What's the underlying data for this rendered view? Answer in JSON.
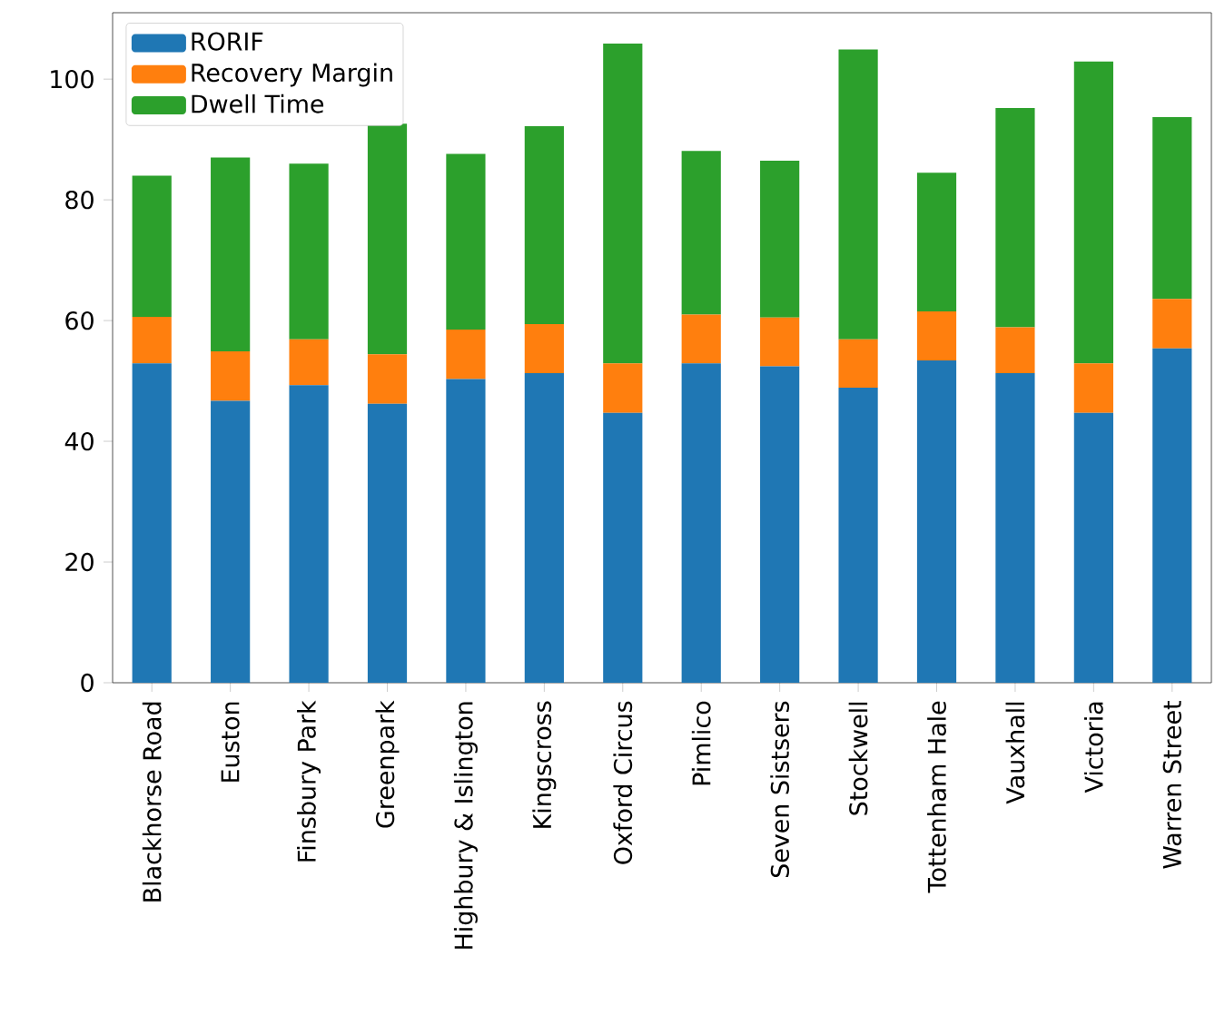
{
  "chart_data": {
    "type": "bar",
    "stacked": true,
    "legend": "top left",
    "categories": [
      "Blackhorse Road",
      "Euston",
      "Finsbury Park",
      "Greenpark",
      "Highbury & Islington",
      "Kingscross",
      "Oxford Circus",
      "Pimlico",
      "Seven Sistsers",
      "Stockwell",
      "Tottenham Hale",
      "Vauxhall",
      "Victoria",
      "Warren Street"
    ],
    "series": [
      {
        "name": "RORIF",
        "color": "#1f77b4",
        "values": [
          52.9,
          46.7,
          49.3,
          46.2,
          50.3,
          51.3,
          44.7,
          52.9,
          52.4,
          48.9,
          53.4,
          51.3,
          44.7,
          55.4
        ]
      },
      {
        "name": "Recovery Margin",
        "color": "#ff7f0e",
        "values": [
          7.7,
          8.2,
          7.6,
          8.2,
          8.2,
          8.1,
          8.2,
          8.1,
          8.1,
          8.0,
          8.1,
          7.6,
          8.2,
          8.2
        ]
      },
      {
        "name": "Dwell Time",
        "color": "#2ca02c",
        "values": [
          23.4,
          32.1,
          29.1,
          38.2,
          29.1,
          32.8,
          53.0,
          27.1,
          26.0,
          48.0,
          23.0,
          36.3,
          50.0,
          30.1
        ]
      }
    ],
    "ylim": [
      0,
      111
    ],
    "yticks": [
      0,
      20,
      40,
      60,
      80,
      100
    ]
  }
}
